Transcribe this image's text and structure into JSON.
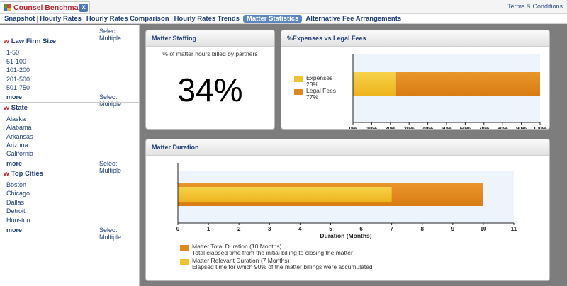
{
  "app": {
    "tab_title": "Counsel Benchma...",
    "close_glyph": "x",
    "terms_link": "Terms & Conditions"
  },
  "nav": {
    "items": [
      "Snapshot",
      "Hourly Rates",
      "Hourly Rates Comparison",
      "Hourly Rates Trends",
      "Matter Statistics",
      "Alternative Fee Arrangements"
    ],
    "active": "Matter Statistics"
  },
  "sidebar": {
    "select_multiple": "Select Multiple",
    "more": "more",
    "sections": [
      {
        "title": "Law Firm Size",
        "items": [
          "1-50",
          "51-100",
          "101-200",
          "201-500",
          "501-750"
        ]
      },
      {
        "title": "State",
        "items": [
          "Alaska",
          "Alabama",
          "Arkansas",
          "Arizona",
          "California"
        ]
      },
      {
        "title": "Top Cities",
        "items": [
          "Boston",
          "Chicago",
          "Dallas",
          "Detroit",
          "Houston"
        ]
      }
    ]
  },
  "staffing": {
    "title": "Matter Staffing",
    "subtitle": "% of matter hours billed by partners",
    "value": "34%"
  },
  "colors": {
    "yellow": "#f2c12e",
    "orange": "#e08a1e",
    "chart_bg": "#eef4fb"
  },
  "chart_data": [
    {
      "type": "bar",
      "title": "%Expenses vs Legal Fees",
      "stacked": true,
      "orientation": "horizontal",
      "series": [
        {
          "name": "Expenses",
          "label": "23%",
          "value": 23
        },
        {
          "name": "Legal Fees",
          "label": "77%",
          "value": 77
        }
      ],
      "xlim": [
        0,
        100
      ],
      "ticks": [
        "0%",
        "10%",
        "20%",
        "30%",
        "40%",
        "50%",
        "60%",
        "70%",
        "80%",
        "90%",
        "100%"
      ],
      "legend": "left"
    },
    {
      "type": "bar",
      "title": "Matter Duration",
      "orientation": "horizontal",
      "overlay": true,
      "series": [
        {
          "name": "Matter Total Duration (10 Months)",
          "description": "Total elapsed time from the initial billing to closing the matter",
          "value": 10
        },
        {
          "name": "Matter Relevant Duration (7 Months)",
          "description": "Elapsed time for which 90% of the matter billings were accumulated",
          "value": 7
        }
      ],
      "xlim": [
        0,
        11
      ],
      "ticks": [
        "0",
        "1",
        "2",
        "3",
        "4",
        "5",
        "6",
        "7",
        "8",
        "9",
        "10",
        "11"
      ],
      "xlabel": "Duration (Months)",
      "legend": "bottom-left"
    }
  ]
}
